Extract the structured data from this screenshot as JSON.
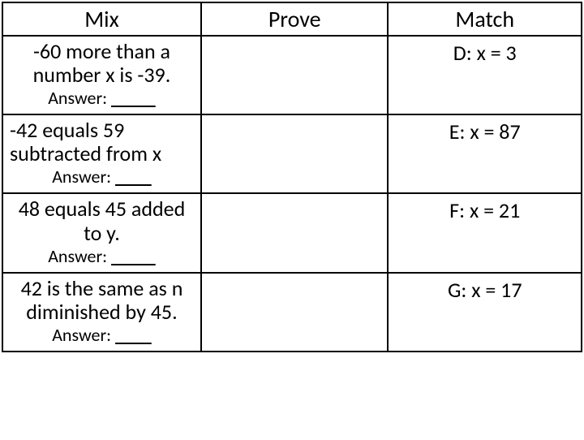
{
  "header": {
    "mix": "Mix",
    "prove": "Prove",
    "match": "Match"
  },
  "rows": [
    {
      "problem": "-60 more than a number x is  -39.",
      "answer_prefix": "Answer: ",
      "blank": "           ",
      "match": "D: x = 3"
    },
    {
      "problem": "-42 equals 59 subtracted from x",
      "answer_prefix": "Answer: ",
      "blank": "         ",
      "match": "E: x = 87"
    },
    {
      "problem": "48 equals 45 added to y.",
      "answer_prefix": "Answer: ",
      "blank": "           ",
      "match": "F: x = 21"
    },
    {
      "problem": "42 is the same as n diminished by 45.",
      "answer_prefix": "Answer: ",
      "blank": "         ",
      "match": "G: x = 17"
    }
  ]
}
